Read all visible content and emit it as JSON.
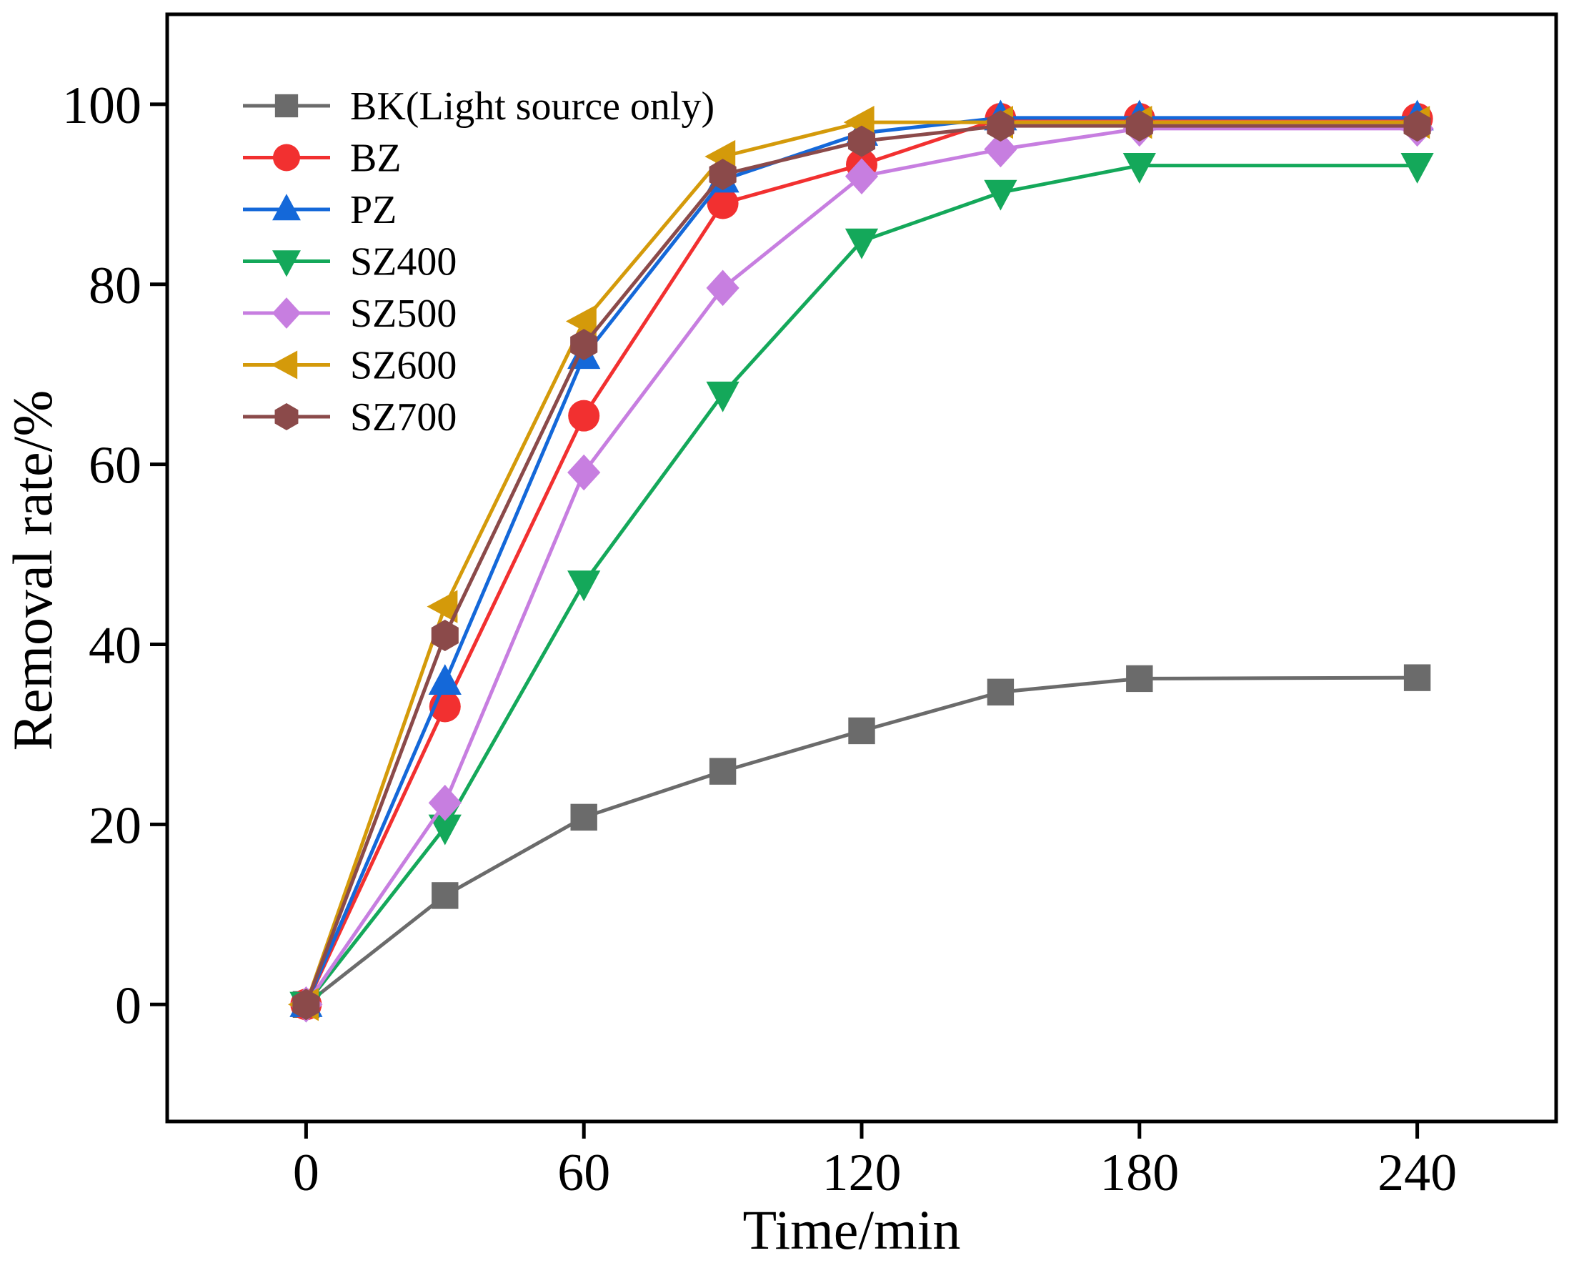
{
  "chart_data": {
    "type": "line",
    "title": "",
    "xlabel": "Time/min",
    "ylabel": "Removal rate/%",
    "xlim": [
      -30,
      270
    ],
    "ylim": [
      -13,
      110
    ],
    "xticks": [
      0,
      60,
      120,
      180,
      240
    ],
    "yticks": [
      0,
      20,
      40,
      60,
      80,
      100
    ],
    "grid": false,
    "legend_position": "top-left",
    "x": [
      0,
      30,
      60,
      90,
      120,
      150,
      180,
      240
    ],
    "series": [
      {
        "name": "BK(Light source only)",
        "color": "#6b6b6b",
        "marker": "square",
        "values": [
          0,
          12.1,
          20.8,
          25.9,
          30.4,
          34.7,
          36.2,
          36.3
        ]
      },
      {
        "name": "BZ",
        "color": "#f23030",
        "marker": "circle",
        "values": [
          0,
          33.1,
          65.4,
          89.0,
          93.3,
          98.4,
          98.4,
          98.4
        ]
      },
      {
        "name": "PZ",
        "color": "#1468d9",
        "marker": "triangle-up",
        "values": [
          0,
          35.8,
          72.0,
          91.6,
          96.8,
          98.5,
          98.5,
          98.5
        ]
      },
      {
        "name": "SZ400",
        "color": "#14a85a",
        "marker": "triangle-down",
        "values": [
          0,
          19.7,
          46.8,
          67.8,
          84.8,
          90.2,
          93.2,
          93.2
        ]
      },
      {
        "name": "SZ500",
        "color": "#c77ee0",
        "marker": "diamond",
        "values": [
          0,
          22.4,
          59.1,
          79.6,
          92.0,
          95.0,
          97.3,
          97.3
        ]
      },
      {
        "name": "SZ600",
        "color": "#d49a0a",
        "marker": "triangle-left",
        "values": [
          0,
          44.2,
          75.9,
          94.2,
          98.0,
          98.0,
          98.0,
          98.0
        ]
      },
      {
        "name": "SZ700",
        "color": "#8b4a4a",
        "marker": "hexagon",
        "values": [
          0,
          41.0,
          73.3,
          92.2,
          95.9,
          97.6,
          97.6,
          97.6
        ]
      }
    ]
  }
}
